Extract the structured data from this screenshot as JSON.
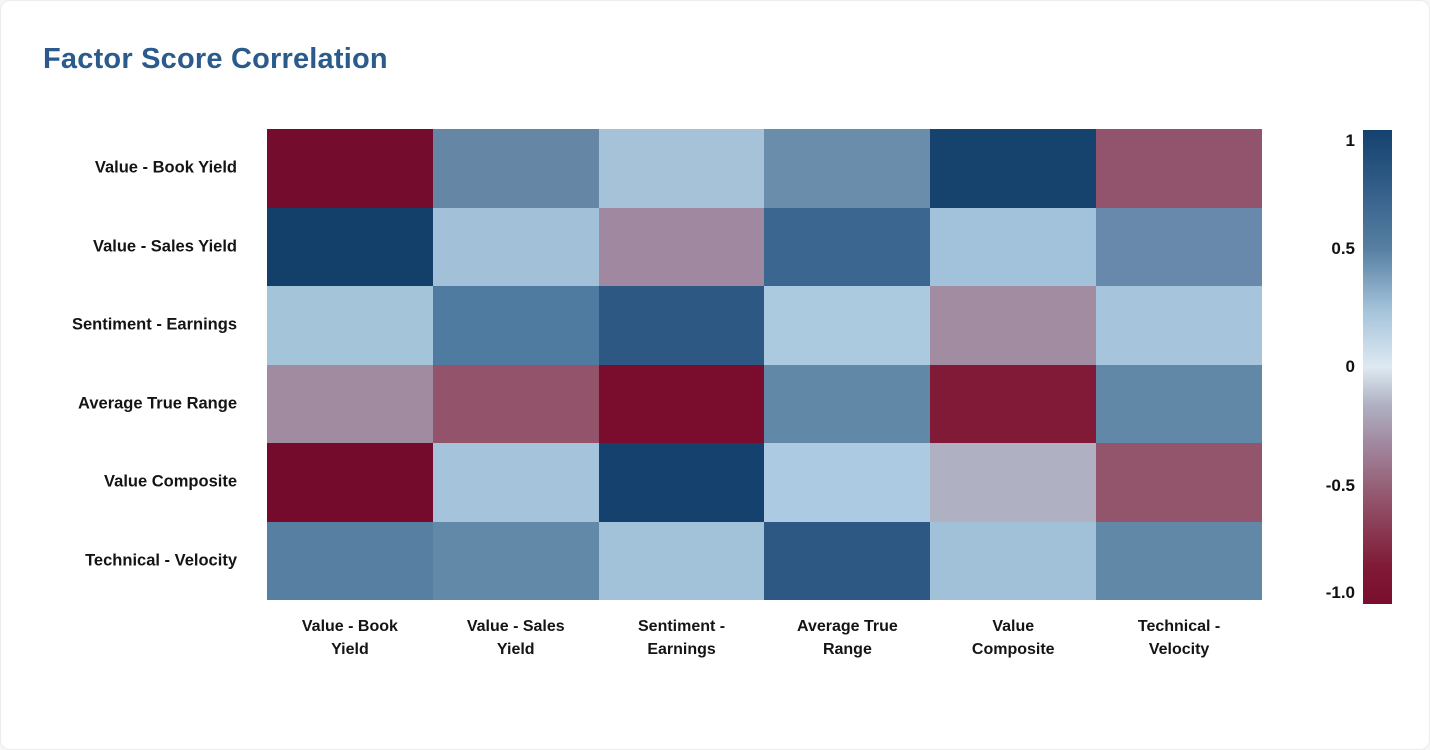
{
  "page": {
    "background": "#ffffff",
    "border_color": "#ececec"
  },
  "header": {
    "title": "Factor Score Correlation",
    "title_color": "#2B5A8C"
  },
  "chart_data": {
    "type": "heatmap",
    "title": "Factor Score Correlation",
    "rows": [
      "Value - Book Yield",
      "Value - Sales Yield",
      "Sentiment - Earnings",
      "Average True Range",
      "Value Composite",
      "Technical - Velocity"
    ],
    "columns": [
      "Value - Book Yield",
      "Value - Sales Yield",
      "Sentiment - Earnings",
      "Average True Range",
      "Value Composite",
      "Technical - Velocity"
    ],
    "column_labels_wrapped": [
      "Value - Book\nYield",
      "Value - Sales\nYield",
      "Sentiment -\nEarnings",
      "Average True\nRange",
      "Value\nComposite",
      "Technical -\nVelocity"
    ],
    "values": [
      [
        -1.0,
        0.45,
        0.25,
        0.45,
        0.95,
        -0.55
      ],
      [
        0.95,
        0.25,
        -0.3,
        0.65,
        0.25,
        0.45
      ],
      [
        0.25,
        0.55,
        0.8,
        0.2,
        -0.3,
        0.25
      ],
      [
        -0.3,
        -0.55,
        -0.95,
        0.45,
        -0.85,
        0.45
      ],
      [
        -1.0,
        0.25,
        0.95,
        0.2,
        -0.1,
        -0.55
      ],
      [
        0.5,
        0.45,
        0.25,
        0.8,
        0.25,
        0.45
      ]
    ],
    "cell_colors": [
      [
        "#740C2D",
        "#6587A5",
        "#A6C2D8",
        "#6B8DAC",
        "#16426E",
        "#91546C"
      ],
      [
        "#133F6B",
        "#A2C0D8",
        "#A089A0",
        "#3A6690",
        "#A2C1DA",
        "#6889AB"
      ],
      [
        "#A4C4DA",
        "#4F7BA0",
        "#2D5884",
        "#ABCADF",
        "#A28CA2",
        "#A6C4DC"
      ],
      [
        "#A08BA0",
        "#93536A",
        "#7A0C2E",
        "#6288A8",
        "#801A36",
        "#6288A8"
      ],
      [
        "#750B2C",
        "#A5C3DA",
        "#14416D",
        "#ACCBE2",
        "#AFB1C3",
        "#92556C"
      ],
      [
        "#567FA2",
        "#6389A8",
        "#A2C2D9",
        "#2D5884",
        "#A0C1D8",
        "#6288A8"
      ]
    ],
    "colorscale": {
      "name": "red-blue-diverging",
      "min": -1,
      "max": 1,
      "stops": [
        {
          "pos": 0,
          "color": "#14416E"
        },
        {
          "pos": 10,
          "color": "#2D5884"
        },
        {
          "pos": 25,
          "color": "#567FA2"
        },
        {
          "pos": 38,
          "color": "#A4C3DA"
        },
        {
          "pos": 50,
          "color": "#DEE9F2"
        },
        {
          "pos": 58,
          "color": "#AFB1C3"
        },
        {
          "pos": 66,
          "color": "#A189A0"
        },
        {
          "pos": 78,
          "color": "#92546B"
        },
        {
          "pos": 92,
          "color": "#801A36"
        },
        {
          "pos": 100,
          "color": "#7A0D2E"
        }
      ]
    },
    "colorbar": {
      "tick_labels": [
        "1",
        "0.5",
        "0",
        "-0.5",
        "-1.0"
      ],
      "tick_values": [
        1,
        0.5,
        0,
        -0.5,
        -1
      ]
    },
    "legend_position": "right",
    "grid": false,
    "xlabel": "",
    "ylabel": ""
  }
}
